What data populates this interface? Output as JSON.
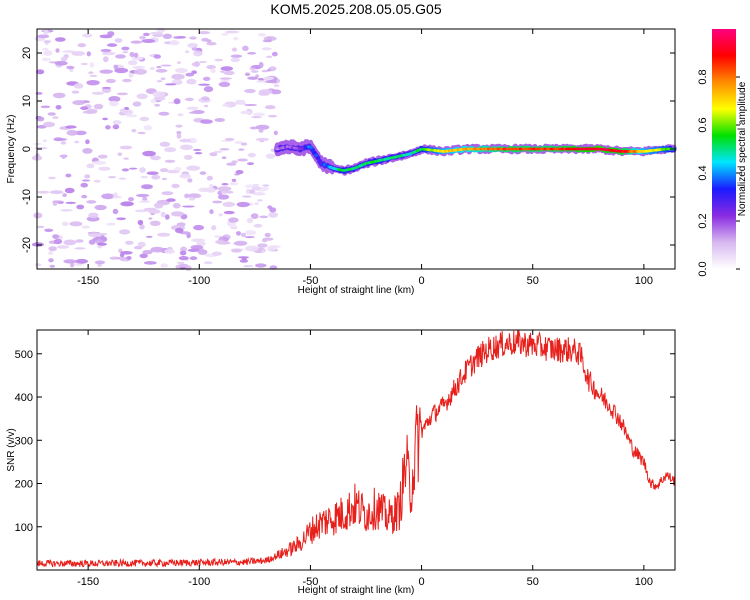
{
  "title": "KOM5.2025.208.05.05.G05",
  "chart_data": [
    {
      "type": "heatmap",
      "xlabel": "Height of straight line (km)",
      "ylabel": "Frequency (Hz)",
      "xlim": [
        -173,
        114
      ],
      "ylim": [
        -25,
        25
      ],
      "xticks": [
        -150,
        -100,
        -50,
        0,
        50,
        100
      ],
      "yticks": [
        -20,
        -10,
        0,
        10,
        20
      ],
      "colorbar": {
        "label": "Normalized spectral amplitude",
        "range": [
          0,
          1
        ],
        "ticks": [
          "0.0",
          "0.2",
          "0.4",
          "0.6",
          "0.8"
        ],
        "colormap": [
          "#ffffff",
          "#d8b8f0",
          "#8a2be2",
          "#1a1aff",
          "#00e5ff",
          "#00e000",
          "#ffff00",
          "#ff8c00",
          "#ff0000",
          "#ff0080"
        ]
      },
      "noise_region_x": [
        -173,
        -65
      ],
      "ridge": {
        "x": [
          -65,
          -60,
          -55,
          -50,
          -45,
          -40,
          -35,
          -30,
          -25,
          -20,
          -15,
          -10,
          -5,
          0,
          10,
          20,
          30,
          40,
          50,
          60,
          70,
          80,
          90,
          100,
          110,
          114
        ],
        "freq": [
          0,
          0.5,
          0,
          0.5,
          -3,
          -4,
          -4.5,
          -4,
          -3,
          -2.5,
          -2,
          -1.5,
          -1,
          0,
          -0.5,
          0,
          0,
          0,
          0,
          0,
          0,
          0,
          -0.5,
          -0.5,
          0,
          0
        ],
        "amplitude": [
          0.15,
          0.2,
          0.2,
          0.4,
          0.3,
          0.45,
          0.55,
          0.5,
          0.5,
          0.55,
          0.5,
          0.5,
          0.45,
          0.55,
          0.7,
          0.75,
          0.8,
          0.85,
          0.85,
          0.85,
          0.9,
          0.95,
          0.9,
          0.7,
          0.6,
          0.5
        ]
      }
    },
    {
      "type": "line",
      "xlabel": "Height of straight line (km)",
      "ylabel": "SNR (v/v)",
      "xlim": [
        -173,
        114
      ],
      "ylim": [
        0,
        555
      ],
      "xticks": [
        -150,
        -100,
        -50,
        0,
        50,
        100
      ],
      "yticks": [
        100,
        200,
        300,
        400,
        500
      ],
      "series": [
        {
          "color": "#e8201c",
          "x": [
            -173,
            -150,
            -120,
            -100,
            -80,
            -70,
            -62,
            -55,
            -50,
            -45,
            -40,
            -35,
            -30,
            -25,
            -20,
            -15,
            -10,
            -7,
            -5,
            -2,
            0,
            5,
            10,
            15,
            20,
            25,
            30,
            35,
            40,
            45,
            50,
            55,
            60,
            65,
            70,
            72,
            75,
            80,
            85,
            90,
            95,
            100,
            103,
            106,
            110,
            114
          ],
          "y": [
            15,
            15,
            16,
            17,
            18,
            22,
            40,
            60,
            90,
            110,
            120,
            130,
            150,
            130,
            145,
            120,
            140,
            250,
            180,
            300,
            320,
            360,
            380,
            420,
            460,
            490,
            510,
            520,
            525,
            525,
            520,
            515,
            510,
            510,
            505,
            490,
            440,
            405,
            380,
            340,
            280,
            250,
            200,
            195,
            220,
            205
          ]
        }
      ]
    }
  ]
}
